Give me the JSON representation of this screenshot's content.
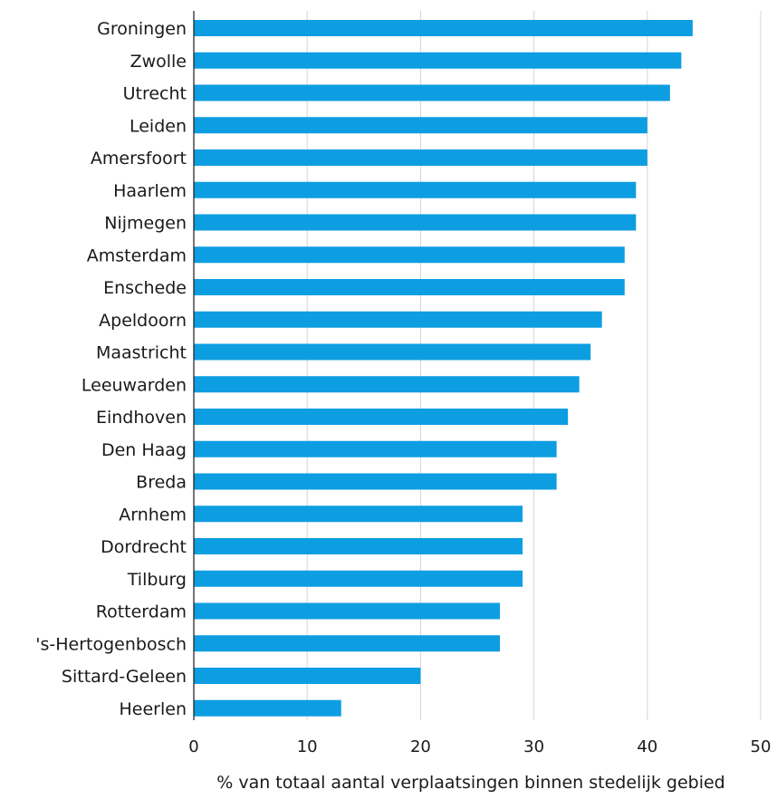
{
  "chart_data": {
    "type": "bar",
    "orientation": "horizontal",
    "categories": [
      "Groningen",
      "Zwolle",
      "Utrecht",
      "Leiden",
      "Amersfoort",
      "Haarlem",
      "Nijmegen",
      "Amsterdam",
      "Enschede",
      "Apeldoorn",
      "Maastricht",
      "Leeuwarden",
      "Eindhoven",
      "Den Haag",
      "Breda",
      "Arnhem",
      "Dordrecht",
      "Tilburg",
      "Rotterdam",
      "'s-Hertogenbosch",
      "Sittard-Geleen",
      "Heerlen"
    ],
    "values": [
      44,
      43,
      42,
      40,
      40,
      39,
      39,
      38,
      38,
      36,
      35,
      34,
      33,
      32,
      32,
      29,
      29,
      29,
      27,
      27,
      20,
      13
    ],
    "xlabel": "% van totaal aantal verplaatsingen binnen stedelijk gebied",
    "xlim": [
      0,
      50
    ],
    "xticks": [
      "0",
      "10",
      "20",
      "30",
      "40",
      "50"
    ],
    "grid": "vertical",
    "bar_color": "#0d9ee1",
    "grid_color": "#d4d4d4"
  }
}
